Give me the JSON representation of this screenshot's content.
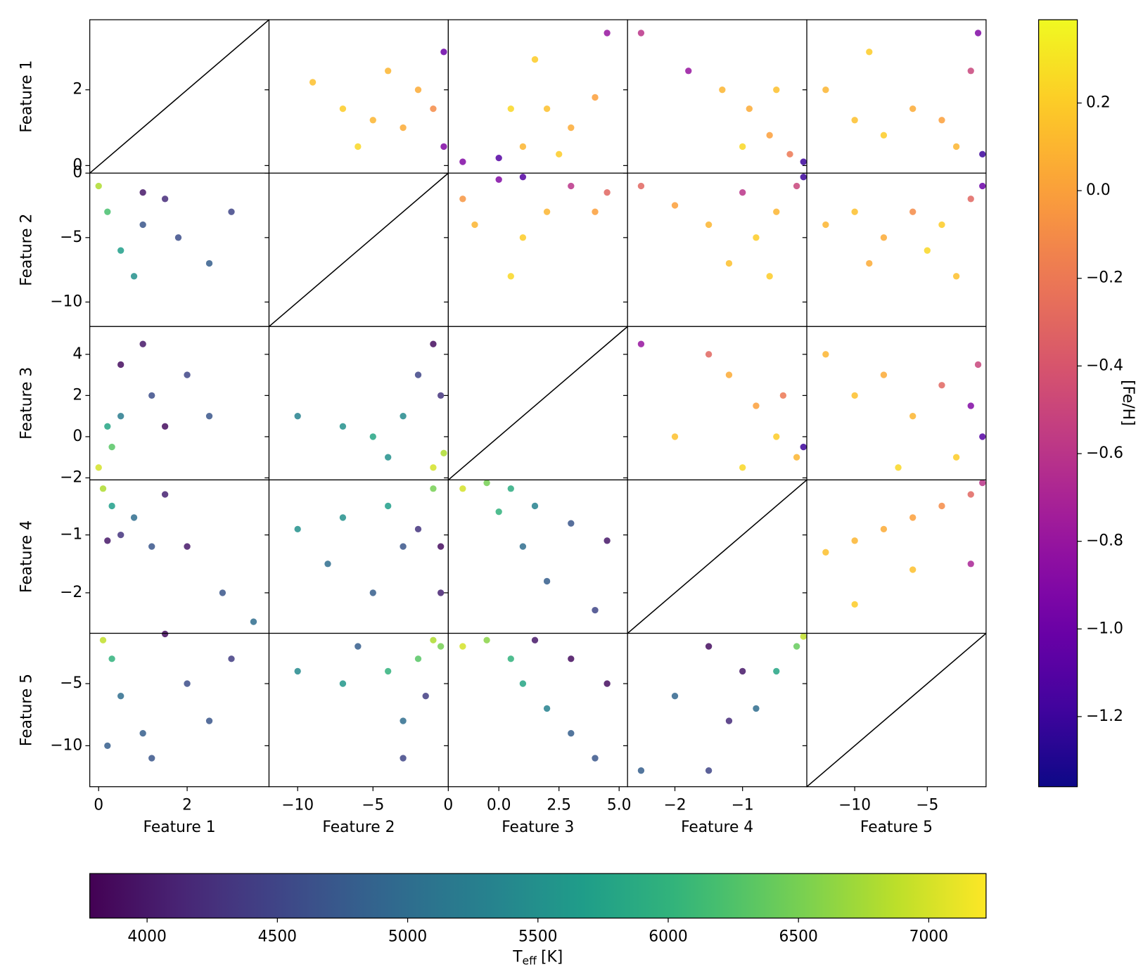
{
  "chart_data": {
    "type": "scatter_matrix",
    "features": [
      {
        "name": "Feature 1",
        "lim": [
          -0.2,
          3.85
        ],
        "xticks": [
          0,
          2
        ],
        "yticks": [
          0,
          2
        ]
      },
      {
        "name": "Feature 2",
        "lim": [
          -11.9,
          0
        ],
        "xticks": [
          {
            "value": -10,
            "label": "−10"
          },
          {
            "value": -5,
            "label": "−5"
          },
          0
        ],
        "yticks": [
          {
            "value": -10,
            "label": "−10"
          },
          {
            "value": -5,
            "label": "−5"
          },
          0
        ]
      },
      {
        "name": "Feature 3",
        "lim": [
          -2.1,
          5.35
        ],
        "xticks": [
          {
            "value": 0,
            "label": "0.0"
          },
          {
            "value": 2.5,
            "label": "2.5"
          },
          {
            "value": 5,
            "label": "5.0"
          }
        ],
        "yticks": [
          {
            "value": -2,
            "label": "−2"
          },
          0,
          2,
          4
        ]
      },
      {
        "name": "Feature 4",
        "lim": [
          -2.7,
          -0.05
        ],
        "xticks": [
          {
            "value": -2,
            "label": "−2"
          },
          {
            "value": -1,
            "label": "−1"
          }
        ],
        "yticks": [
          {
            "value": -2,
            "label": "−2"
          },
          {
            "value": -1,
            "label": "−1"
          }
        ]
      },
      {
        "name": "Feature 5",
        "lim": [
          -13.3,
          -0.95
        ],
        "xticks": [
          {
            "value": -10,
            "label": "−10"
          },
          {
            "value": -5,
            "label": "−5"
          }
        ],
        "yticks": [
          {
            "value": -10,
            "label": "−10"
          },
          {
            "value": -5,
            "label": "−5"
          }
        ]
      }
    ],
    "panels": [
      [
        {
          "x": [
            -0.2,
            3.85
          ],
          "y": [
            -0.2,
            3.85
          ],
          "color": "#000000"
        },
        {
          "colormap": "plasma",
          "x": [
            -9,
            -7,
            -5,
            -3,
            -2,
            -1,
            -0.3,
            -0.3,
            -6,
            -4
          ],
          "y": [
            2.2,
            1.5,
            1.2,
            1.0,
            2.0,
            1.5,
            0.5,
            3,
            0.5,
            2.5
          ],
          "c": [
            0.15,
            0.2,
            0.1,
            0.05,
            0.05,
            -0.1,
            -0.9,
            -1.0,
            0.25,
            0.1
          ]
        },
        {
          "colormap": "plasma",
          "x": [
            -1.5,
            0,
            1,
            2,
            3,
            4,
            1.5,
            4.5,
            2.5,
            0.5
          ],
          "y": [
            0.1,
            0.2,
            0.5,
            1.5,
            1,
            1.8,
            2.8,
            3.5,
            0.3,
            1.5
          ],
          "c": [
            -0.9,
            -1.1,
            0.1,
            0.15,
            0.05,
            0.0,
            0.2,
            -0.8,
            0.2,
            0.25
          ]
        },
        {
          "colormap": "plasma",
          "x": [
            -2.5,
            -1.8,
            -1.3,
            -0.9,
            -0.6,
            -0.3,
            -0.1,
            -0.5,
            -1.0
          ],
          "y": [
            3.5,
            2.5,
            2.0,
            1.5,
            0.8,
            0.3,
            0.1,
            2.0,
            0.5
          ],
          "c": [
            -0.6,
            -0.8,
            0.1,
            0.05,
            0.0,
            -0.2,
            -1.2,
            0.15,
            0.25
          ]
        },
        {
          "colormap": "plasma",
          "x": [
            -12,
            -10,
            -8,
            -6,
            -4,
            -3,
            -2,
            -1.2,
            -1.5,
            -9
          ],
          "y": [
            2,
            1.2,
            0.8,
            1.5,
            1.2,
            0.5,
            2.5,
            0.3,
            3.5,
            3
          ],
          "c": [
            0.1,
            0.15,
            0.2,
            0.05,
            0.0,
            0.1,
            -0.5,
            -1.2,
            -0.9,
            0.2
          ]
        }
      ],
      [
        {
          "colormap": "viridis",
          "x": [
            0,
            0.2,
            0.5,
            0.8,
            1,
            1.5,
            1.8,
            2.5,
            1,
            3
          ],
          "y": [
            -1,
            -3,
            -6,
            -8,
            -4,
            -2,
            -5,
            -7,
            -1.5,
            -3
          ],
          "c": [
            6800,
            6200,
            5700,
            5500,
            4700,
            4200,
            4600,
            4800,
            4000,
            4500
          ]
        },
        {
          "x": [
            -11.9,
            0
          ],
          "y": [
            -11.9,
            0
          ],
          "color": "#000000"
        },
        {
          "colormap": "plasma",
          "x": [
            -1.5,
            0,
            1,
            3,
            4.5,
            1,
            0.5,
            2,
            -1,
            4
          ],
          "y": [
            -2,
            -0.5,
            -0.3,
            -1,
            -1.5,
            -5,
            -8,
            -3,
            -4,
            -3
          ],
          "c": [
            -0.05,
            -0.9,
            -1.1,
            -0.6,
            -0.3,
            0.2,
            0.25,
            0.1,
            0.1,
            0.0
          ]
        },
        {
          "colormap": "plasma",
          "x": [
            -2.5,
            -2,
            -1.5,
            -1.2,
            -0.8,
            -0.5,
            -0.2,
            -0.1,
            -1,
            -0.6
          ],
          "y": [
            -1,
            -2.5,
            -4,
            -7,
            -5,
            -3,
            -1,
            -0.3,
            -1.5,
            -8
          ],
          "c": [
            -0.3,
            0.0,
            0.1,
            0.15,
            0.2,
            0.1,
            -0.5,
            -1.2,
            -0.6,
            0.2
          ]
        },
        {
          "colormap": "plasma",
          "x": [
            -12,
            -10,
            -8,
            -6,
            -5,
            -4,
            -2,
            -1.2,
            -3,
            -9
          ],
          "y": [
            -4,
            -3,
            -5,
            -3,
            -6,
            -4,
            -2,
            -1,
            -8,
            -7
          ],
          "c": [
            0.1,
            0.15,
            0.05,
            -0.1,
            0.25,
            0.2,
            -0.3,
            -1.0,
            0.15,
            0.05
          ]
        }
      ],
      [
        {
          "colormap": "viridis",
          "x": [
            0,
            0.3,
            0.5,
            0.5,
            1,
            1.5,
            1.2,
            2,
            0.2,
            2.5
          ],
          "y": [
            -1.5,
            -0.5,
            1,
            3.5,
            4.5,
            0.5,
            2,
            3,
            0.5,
            1
          ],
          "c": [
            7000,
            6300,
            5200,
            3900,
            4000,
            3900,
            4600,
            4500,
            5800,
            4700
          ]
        },
        {
          "colormap": "viridis",
          "x": [
            -10,
            -7,
            -5,
            -3,
            -2,
            -1,
            -0.5,
            -1,
            -0.3,
            -4
          ],
          "y": [
            1,
            0.5,
            0,
            1,
            3,
            4.5,
            2,
            -1.5,
            -0.8,
            -1
          ],
          "c": [
            5300,
            5500,
            5800,
            5400,
            4500,
            3900,
            4300,
            7000,
            6800,
            5500
          ]
        },
        {
          "x": [
            -2.1,
            5.35
          ],
          "y": [
            -2.1,
            5.35
          ],
          "color": "#000000"
        },
        {
          "colormap": "plasma",
          "x": [
            -2.5,
            -1.5,
            -1.2,
            -0.8,
            -0.5,
            -0.2,
            -0.1,
            -2,
            -1,
            -0.4
          ],
          "y": [
            4.5,
            4,
            3,
            1.5,
            0,
            -1,
            -0.5,
            0,
            -1.5,
            2
          ],
          "c": [
            -0.8,
            -0.3,
            0.05,
            0.0,
            0.2,
            0.1,
            -1.2,
            0.15,
            0.25,
            -0.2
          ]
        },
        {
          "colormap": "plasma",
          "x": [
            -12,
            -10,
            -8,
            -6,
            -4,
            -2,
            -1.2,
            -3,
            -7,
            -1.5
          ],
          "y": [
            4,
            2,
            3,
            1,
            2.5,
            1.5,
            0,
            -1,
            -1.5,
            3.5
          ],
          "c": [
            0.1,
            0.15,
            0.05,
            0.1,
            -0.3,
            -0.9,
            -1.1,
            0.2,
            0.25,
            -0.5
          ]
        }
      ],
      [
        {
          "colormap": "viridis",
          "x": [
            0.1,
            0.3,
            0.8,
            1.5,
            0.5,
            1.2,
            2,
            2.8,
            3.5,
            0.2
          ],
          "y": [
            -0.2,
            -0.5,
            -0.7,
            -0.3,
            -1,
            -1.2,
            -1.2,
            -2,
            -2.5,
            -1.1
          ],
          "c": [
            6800,
            5700,
            5000,
            4100,
            4300,
            4700,
            4000,
            4700,
            5000,
            4000
          ]
        },
        {
          "colormap": "viridis",
          "x": [
            -10,
            -7,
            -4,
            -1,
            -2,
            -0.5,
            -3,
            -0.5,
            -8,
            -5
          ],
          "y": [
            -0.9,
            -0.7,
            -0.5,
            -0.2,
            -0.9,
            -1.2,
            -1.2,
            -2,
            -1.5,
            -2
          ],
          "c": [
            5500,
            5500,
            5700,
            6500,
            4300,
            3900,
            4700,
            4100,
            5000,
            4800
          ]
        },
        {
          "colormap": "viridis",
          "x": [
            -1.5,
            -0.5,
            0.5,
            1.5,
            3,
            4.5,
            0,
            1,
            2,
            4
          ],
          "y": [
            -0.2,
            -0.1,
            -0.2,
            -0.5,
            -0.8,
            -1.1,
            -0.6,
            -1.2,
            -1.8,
            -2.3
          ],
          "c": [
            7000,
            6500,
            5900,
            5300,
            4700,
            4000,
            6000,
            5000,
            4800,
            4500
          ]
        },
        {
          "x": [
            -2.7,
            -0.05
          ],
          "y": [
            -2.7,
            -0.05
          ],
          "color": "#000000"
        },
        {
          "colormap": "plasma",
          "x": [
            -12,
            -10,
            -8,
            -6,
            -4,
            -2,
            -1.2,
            -2,
            -6,
            -10
          ],
          "y": [
            -1.3,
            -1.1,
            -0.9,
            -0.7,
            -0.5,
            -0.3,
            -0.1,
            -1.5,
            -1.6,
            -2.2
          ],
          "c": [
            0.15,
            0.1,
            0.05,
            0.0,
            -0.1,
            -0.3,
            -0.6,
            -0.7,
            0.15,
            0.2
          ]
        }
      ],
      [
        {
          "colormap": "viridis",
          "x": [
            0.1,
            0.3,
            0.5,
            1,
            1.5,
            2,
            2.5,
            1.2,
            0.2,
            3
          ],
          "y": [
            -1.5,
            -3,
            -6,
            -9,
            -1,
            -5,
            -8,
            -11,
            -10,
            -3
          ],
          "c": [
            6900,
            6000,
            5000,
            4800,
            3900,
            4600,
            4700,
            4700,
            4800,
            4400
          ]
        },
        {
          "colormap": "viridis",
          "x": [
            -10,
            -7,
            -4,
            -1,
            -2,
            -3,
            -3,
            -1.5,
            -6,
            -0.5
          ],
          "y": [
            -4,
            -5,
            -4,
            -1.5,
            -3,
            -8,
            -11,
            -6,
            -2,
            -2
          ],
          "c": [
            5400,
            5600,
            6000,
            6800,
            6300,
            5000,
            4500,
            4400,
            4800,
            6500
          ]
        },
        {
          "colormap": "viridis",
          "x": [
            -1.5,
            -0.5,
            0.5,
            1,
            2,
            3,
            4,
            3,
            4.5,
            1.5
          ],
          "y": [
            -2,
            -1.5,
            -3,
            -5,
            -7,
            -9,
            -11,
            -3,
            -5,
            -1.5
          ],
          "c": [
            7000,
            6600,
            6000,
            5800,
            5300,
            4800,
            4700,
            3900,
            3900,
            4000
          ]
        },
        {
          "colormap": "viridis",
          "x": [
            -2.5,
            -1.5,
            -1.2,
            -1,
            -0.8,
            -0.5,
            -0.2,
            -0.1,
            -2,
            -1.5
          ],
          "y": [
            -12,
            -12,
            -8,
            -4,
            -7,
            -4,
            -2,
            -1.2,
            -6,
            -2
          ],
          "c": [
            4800,
            4500,
            4200,
            4000,
            5000,
            5800,
            6400,
            6900,
            4900,
            3900
          ]
        },
        {
          "x": [
            -13.3,
            -0.95
          ],
          "y": [
            -13.3,
            -0.95
          ],
          "color": "#000000"
        }
      ]
    ],
    "colorbars": [
      {
        "label": "[Fe/H]",
        "colormap": "plasma",
        "orientation": "vertical",
        "lim": [
          -1.36,
          0.39
        ],
        "ticks": [
          0.2,
          {
            "value": 0,
            "label": "0.0"
          },
          {
            "value": -0.2,
            "label": "−0.2"
          },
          {
            "value": -0.4,
            "label": "−0.4"
          },
          {
            "value": -0.6,
            "label": "−0.6"
          },
          {
            "value": -0.8,
            "label": "−0.8"
          },
          {
            "value": -1.0,
            "label": "−1.0"
          },
          {
            "value": -1.2,
            "label": "−1.2"
          }
        ]
      },
      {
        "label": "T",
        "label_sub": "eff",
        "label_unit": "[K]",
        "colormap": "viridis",
        "orientation": "horizontal",
        "lim": [
          3780,
          7220
        ],
        "ticks": [
          4000,
          4500,
          5000,
          5500,
          6000,
          6500,
          7000
        ]
      }
    ]
  }
}
